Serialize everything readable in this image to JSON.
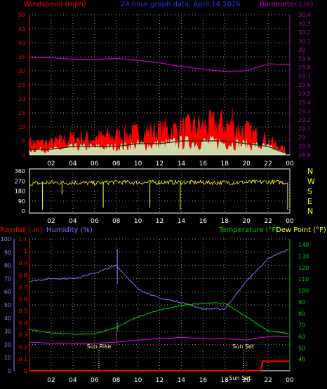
{
  "title": "24 hour graph data, April 14 2026",
  "colors": {
    "wind_avg": "#c8ffc8",
    "wind_gust": "#ff0000",
    "barometer": "#c000c0",
    "wind_dir": "#ffff00",
    "rain": "#ff0000",
    "humidity": "#7777ff",
    "temperature": "#00cc00",
    "dew_point": "#ff00ff",
    "annotation": "#ffff99",
    "axis_red": "#ff0000",
    "axis_magenta": "#c000c0",
    "axis_green": "#00cc00",
    "axis_yellow": "#ffff00",
    "humidity_axis": "#8888ff",
    "grid": "#888888"
  },
  "x_ticks": [
    "02",
    "04",
    "06",
    "08",
    "10",
    "12",
    "14",
    "16",
    "18",
    "20",
    "22",
    "00"
  ],
  "chart_data": [
    {
      "type": "line",
      "id": "wind",
      "ylabel_left": "Windspeed (mph)",
      "ylabel_right": "Barometer (.in)",
      "yticks_left": [
        "50",
        "45",
        "40",
        "35",
        "30",
        "25",
        "20",
        "15",
        "10",
        "5",
        "0"
      ],
      "yticks_right": [
        "30.4",
        "30.3",
        "30.2",
        "30.1",
        "30",
        "29.9",
        "29.8",
        "29.7",
        "29.6",
        "29.5",
        "29.4",
        "29.3",
        "29.2",
        "29.1",
        "29",
        "28.9",
        "28.8"
      ],
      "ylim_left": [
        0,
        50
      ],
      "ylim_right": [
        28.8,
        30.4
      ],
      "x_hours": [
        0,
        2,
        4,
        6,
        8,
        10,
        12,
        14,
        16,
        18,
        20,
        22,
        24
      ],
      "series": [
        {
          "name": "Windspeed (mph)",
          "axis": "left",
          "values": [
            2,
            2,
            3,
            3,
            3,
            4,
            4,
            5,
            5,
            5,
            4,
            3,
            0
          ]
        },
        {
          "name": "Gust",
          "axis": "left",
          "values": [
            5,
            5,
            7,
            7,
            8,
            9,
            10,
            11,
            12,
            13,
            10,
            6,
            1
          ]
        },
        {
          "name": "Barometer (.in)",
          "axis": "right",
          "values": [
            29.91,
            29.91,
            29.89,
            29.89,
            29.9,
            29.88,
            29.85,
            29.81,
            29.78,
            29.75,
            29.76,
            29.84,
            29.83
          ]
        }
      ]
    },
    {
      "type": "line",
      "id": "wind_direction",
      "yticks_left": [
        "360",
        "270",
        "180",
        "90",
        "0"
      ],
      "yticks_right": [
        "N",
        "W",
        "S",
        "E",
        "N"
      ],
      "ylim": [
        0,
        360
      ],
      "x_hours": [
        0,
        2,
        4,
        6,
        8,
        10,
        12,
        14,
        16,
        18,
        20,
        22,
        24
      ],
      "series": [
        {
          "name": "Wind Direction",
          "values": [
            245,
            255,
            255,
            250,
            260,
            255,
            258,
            258,
            256,
            255,
            258,
            262,
            255
          ]
        }
      ]
    },
    {
      "type": "line",
      "id": "temp",
      "ylabel_left": "Rainfall (.in)",
      "ylabel_humidity": "Humidity (%)",
      "ylabel_temp": "Temperature (°F)",
      "ylabel_dew": "Dew Point (°F)",
      "yticks_humidity": [
        "100",
        "90",
        "80",
        "70",
        "60",
        "50",
        "40",
        "30",
        "20",
        "10",
        "0"
      ],
      "yticks_rain": [
        "1.1",
        "1",
        "0.9",
        "0.8",
        "0.7",
        "0.6",
        "0.5",
        "0.4",
        "0.3",
        "0.2",
        "0.1",
        "0"
      ],
      "yticks_temp": [
        "140",
        "130",
        "120",
        "110",
        "100",
        "90",
        "80",
        "70",
        "60",
        "50",
        "40"
      ],
      "ylim_humidity": [
        0,
        100
      ],
      "ylim_rain": [
        0,
        1.1
      ],
      "ylim_temp": [
        30,
        145
      ],
      "x_hours": [
        0,
        2,
        4,
        6,
        8,
        10,
        12,
        14,
        16,
        18,
        20,
        22,
        24
      ],
      "annotations": [
        "Sun Rise",
        "Sun Set",
        "Sun Set"
      ],
      "annotation_hours": [
        6.4,
        19.7,
        19.4
      ],
      "series": [
        {
          "name": "Humidity (%)",
          "axis": "humidity",
          "values": [
            68,
            70,
            70,
            74,
            80,
            62,
            55,
            52,
            47,
            47,
            68,
            85,
            93
          ]
        },
        {
          "name": "Temperature (°F)",
          "axis": "temp",
          "values": [
            66,
            63,
            62,
            62,
            68,
            77,
            83,
            87,
            89,
            89,
            77,
            65,
            62
          ]
        },
        {
          "name": "Dew Point (°F)",
          "axis": "temp",
          "values": [
            55,
            54,
            54,
            54,
            55,
            57,
            58,
            59,
            58,
            58,
            57,
            60,
            60
          ]
        },
        {
          "name": "Rainfall (.in)",
          "axis": "rain",
          "values": [
            0,
            0,
            0,
            0,
            0,
            0,
            0,
            0,
            0,
            0,
            0,
            0.08,
            0.08
          ]
        }
      ]
    }
  ]
}
